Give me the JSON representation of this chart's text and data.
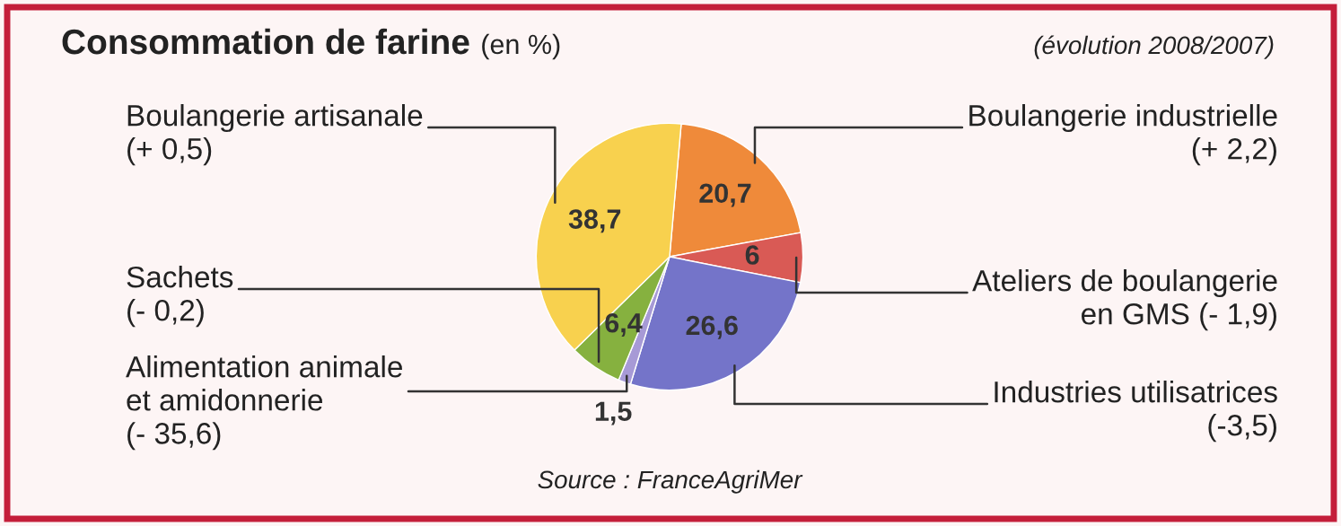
{
  "chart_data": {
    "type": "pie",
    "title": "Consommation de farine",
    "subtitle": "(en %)",
    "categories": [
      "Boulangerie industrielle\n(+ 2,2)",
      "Ateliers de boulangerie\nen GMS (- 1,9)",
      "Industries utilisatrices\n(-3,5)",
      "Alimentation animale\net amidonnerie\n(- 35,6)",
      "Sachets\n(- 0,2)",
      "Boulangerie artisanale\n(+ 0,5)"
    ],
    "values": [
      20.7,
      6,
      26.6,
      1.5,
      6.4,
      38.7
    ],
    "value_labels": [
      "20,7",
      "6",
      "26,6",
      "1,5",
      "6,4",
      "38,7"
    ],
    "colors": [
      "#ef8a3a",
      "#d95a55",
      "#7474c9",
      "#a79ad6",
      "#86b13f",
      "#f8d14e"
    ],
    "annotations": [
      "(évolution 2008/2007)",
      "Source : FranceAgriMer"
    ]
  }
}
